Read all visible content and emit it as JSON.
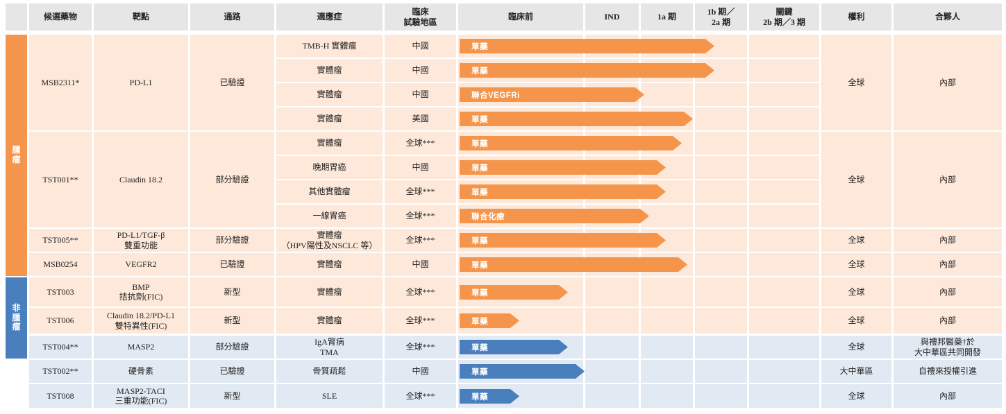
{
  "headers": [
    "候選藥物",
    "靶點",
    "通路",
    "適應症",
    "臨床\n試驗地區",
    "臨床前",
    "IND",
    "1a 期",
    "1b 期／\n2a 期",
    "關鍵\n2b 期／3 期",
    "權利",
    "合夥人"
  ],
  "groups": [
    {
      "label": "腫\n瘤",
      "theme": "oncology"
    },
    {
      "label": "非\n腫\n瘤",
      "theme": "non-oncology"
    }
  ],
  "candidates": [
    {
      "candidate": "MSB2311*",
      "target": "PD-L1",
      "pathway": "已驗證",
      "rights": "全球",
      "partner": "內部",
      "group": 0,
      "indications": [
        {
          "indication": "TMB-H 實體瘤",
          "region": "中國",
          "label": "單藥",
          "progress": 0.47,
          "color": "orange"
        },
        {
          "indication": "實體瘤",
          "region": "中國",
          "label": "單藥",
          "progress": 0.47,
          "color": "orange"
        },
        {
          "indication": "實體瘤",
          "region": "中國",
          "label": "聯合VEGFRi",
          "progress": 0.34,
          "color": "orange"
        },
        {
          "indication": "實體瘤",
          "region": "美國",
          "label": "單藥",
          "progress": 0.43,
          "color": "orange"
        }
      ]
    },
    {
      "candidate": "TST001**",
      "target": "Claudin 18.2",
      "pathway": "部分驗證",
      "rights": "全球",
      "partner": "內部",
      "group": 0,
      "indications": [
        {
          "indication": "實體瘤",
          "region": "全球***",
          "label": "單藥",
          "progress": 0.41,
          "color": "orange"
        },
        {
          "indication": "晚期胃癌",
          "region": "中國",
          "label": "單藥",
          "progress": 0.38,
          "color": "orange"
        },
        {
          "indication": "其他實體瘤",
          "region": "全球***",
          "label": "單藥",
          "progress": 0.38,
          "color": "orange"
        },
        {
          "indication": "一線胃癌",
          "region": "全球***",
          "label": "聯合化療",
          "progress": 0.35,
          "color": "orange"
        }
      ]
    },
    {
      "candidate": "TST005**",
      "target": "PD-L1/TGF-β\n雙重功能",
      "pathway": "部分驗證",
      "rights": "全球",
      "partner": "內部",
      "group": 0,
      "indications": [
        {
          "indication": "實體瘤\n（HPV陽性及NSCLC 等）",
          "region": "全球***",
          "label": "單藥",
          "progress": 0.38,
          "color": "orange"
        }
      ]
    },
    {
      "candidate": "MSB0254",
      "target": "VEGFR2",
      "pathway": "已驗證",
      "rights": "全球",
      "partner": "內部",
      "group": 0,
      "indications": [
        {
          "indication": "實體瘤",
          "region": "中國",
          "label": "單藥",
          "progress": 0.42,
          "color": "orange"
        }
      ]
    },
    {
      "candidate": "TST003",
      "target": "BMP\n拮抗劑(FIC)",
      "pathway": "新型",
      "rights": "全球",
      "partner": "內部",
      "group": 0,
      "indications": [
        {
          "indication": "實體瘤",
          "region": "全球***",
          "label": "單藥",
          "progress": 0.2,
          "color": "orange"
        }
      ]
    },
    {
      "candidate": "TST006",
      "target": "Claudin 18.2/PD-L1\n雙特異性(FIC)",
      "pathway": "新型",
      "rights": "全球",
      "partner": "內部",
      "group": 0,
      "indications": [
        {
          "indication": "實體瘤",
          "region": "全球***",
          "label": "單藥",
          "progress": 0.11,
          "color": "orange"
        }
      ]
    },
    {
      "candidate": "TST004**",
      "target": "MASP2",
      "pathway": "部分驗證",
      "rights": "全球",
      "partner": "與禮邦醫藥†於\n大中華區共同開發",
      "group": 1,
      "indications": [
        {
          "indication": "IgA腎病\nTMA",
          "region": "全球***",
          "label": "單藥",
          "progress": 0.2,
          "color": "blue"
        }
      ]
    },
    {
      "candidate": "TST002**",
      "target": "硬骨素",
      "pathway": "已驗證",
      "rights": "大中華區",
      "partner": "自禮來授權引進",
      "group": 1,
      "indications": [
        {
          "indication": "骨質疏鬆",
          "region": "中國",
          "label": "單藥",
          "progress": 0.23,
          "color": "blue"
        }
      ]
    },
    {
      "candidate": "TST008",
      "target": "MASP2-TACI\n三重功能(FIC)",
      "pathway": "新型",
      "rights": "全球",
      "partner": "內部",
      "group": 1,
      "indications": [
        {
          "indication": "SLE",
          "region": "全球***",
          "label": "單藥",
          "progress": 0.11,
          "color": "blue"
        }
      ]
    }
  ],
  "colors": {
    "oncology_accent": "#f5954b",
    "oncology_bg": "#fde8d9",
    "non_oncology_accent": "#4a7fbd",
    "non_oncology_bg": "#e1e9f3",
    "header_bg": "#e6e6e6"
  }
}
